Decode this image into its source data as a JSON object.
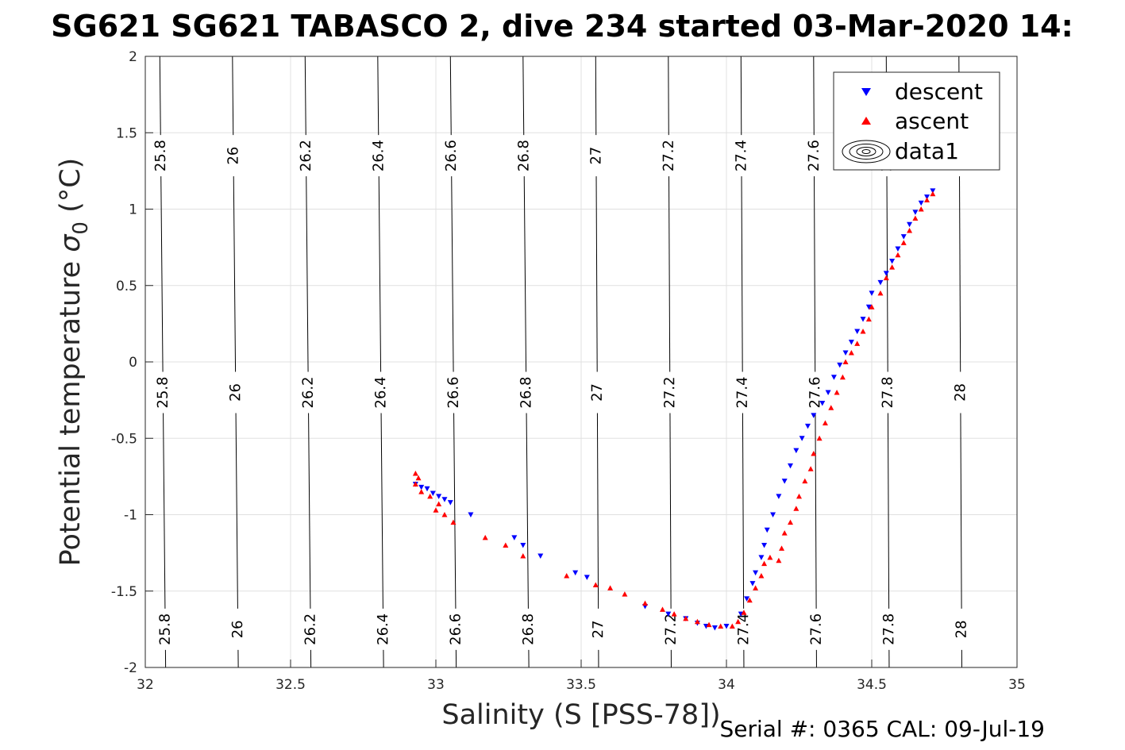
{
  "chart_data": {
    "type": "scatter",
    "title": "SG621 SG621 TABASCO 2, dive 234 started 03-Mar-2020 14:",
    "xlabel": "Salinity (S [PSS-78])",
    "ylabel_main": "Potential temperature ",
    "ylabel_sym": "σ",
    "ylabel_sub": "0",
    "ylabel_unit": " (°C)",
    "footer": "Serial #: 0365  CAL: 09-Jul-19",
    "xlim": [
      32,
      35
    ],
    "ylim": [
      -2,
      2
    ],
    "xticks": [
      32,
      32.5,
      33,
      33.5,
      34,
      34.5,
      35
    ],
    "xtick_labels": [
      "32",
      "32.5",
      "33",
      "33.5",
      "34",
      "34.5",
      "35"
    ],
    "yticks": [
      2,
      1.5,
      1,
      0.5,
      0,
      -0.5,
      -1,
      -1.5,
      -2
    ],
    "ytick_labels": [
      "2",
      "1.5",
      "1",
      "0.5",
      "0",
      "-0.5",
      "-1",
      "-1.5",
      "-2"
    ],
    "grid": true,
    "legend_position": "top-right",
    "isopycnals": {
      "levels": [
        {
          "sigma": 25.8,
          "label": "25.8",
          "x_bottom": 32.07,
          "x_top": 32.05
        },
        {
          "sigma": 26.0,
          "label": "26",
          "x_bottom": 32.32,
          "x_top": 32.3
        },
        {
          "sigma": 26.2,
          "label": "26.2",
          "x_bottom": 32.57,
          "x_top": 32.55
        },
        {
          "sigma": 26.4,
          "label": "26.4",
          "x_bottom": 32.82,
          "x_top": 32.8
        },
        {
          "sigma": 26.6,
          "label": "26.6",
          "x_bottom": 33.07,
          "x_top": 33.05
        },
        {
          "sigma": 26.8,
          "label": "26.8",
          "x_bottom": 33.32,
          "x_top": 33.3
        },
        {
          "sigma": 27.0,
          "label": "27",
          "x_bottom": 33.56,
          "x_top": 33.55
        },
        {
          "sigma": 27.2,
          "label": "27.2",
          "x_bottom": 33.81,
          "x_top": 33.8
        },
        {
          "sigma": 27.4,
          "label": "27.4",
          "x_bottom": 34.06,
          "x_top": 34.05
        },
        {
          "sigma": 27.6,
          "label": "27.6",
          "x_bottom": 34.31,
          "x_top": 34.3
        },
        {
          "sigma": 27.8,
          "label": "27.8",
          "x_bottom": 34.56,
          "x_top": 34.55
        },
        {
          "sigma": 28.0,
          "label": "28",
          "x_bottom": 34.81,
          "x_top": 34.8
        }
      ],
      "label_temps": [
        1.35,
        -0.2,
        -1.75
      ],
      "colors": "#000000"
    },
    "series": [
      {
        "name": "descent",
        "marker": "triangle-down",
        "color": "#0000ff",
        "points": [
          [
            32.93,
            -0.8
          ],
          [
            32.95,
            -0.82
          ],
          [
            32.97,
            -0.83
          ],
          [
            32.99,
            -0.86
          ],
          [
            33.01,
            -0.88
          ],
          [
            33.03,
            -0.9
          ],
          [
            33.05,
            -0.92
          ],
          [
            33.12,
            -1.0
          ],
          [
            33.27,
            -1.15
          ],
          [
            33.3,
            -1.2
          ],
          [
            33.36,
            -1.27
          ],
          [
            33.48,
            -1.38
          ],
          [
            33.52,
            -1.41
          ],
          [
            33.72,
            -1.6
          ],
          [
            33.8,
            -1.65
          ],
          [
            33.86,
            -1.68
          ],
          [
            33.9,
            -1.71
          ],
          [
            33.93,
            -1.73
          ],
          [
            33.96,
            -1.74
          ],
          [
            34.0,
            -1.73
          ],
          [
            34.05,
            -1.65
          ],
          [
            34.07,
            -1.55
          ],
          [
            34.09,
            -1.45
          ],
          [
            34.1,
            -1.38
          ],
          [
            34.12,
            -1.28
          ],
          [
            34.13,
            -1.2
          ],
          [
            34.14,
            -1.1
          ],
          [
            34.16,
            -1.0
          ],
          [
            34.18,
            -0.88
          ],
          [
            34.2,
            -0.78
          ],
          [
            34.22,
            -0.68
          ],
          [
            34.24,
            -0.58
          ],
          [
            34.26,
            -0.5
          ],
          [
            34.28,
            -0.42
          ],
          [
            34.3,
            -0.35
          ],
          [
            34.33,
            -0.27
          ],
          [
            34.35,
            -0.2
          ],
          [
            34.37,
            -0.1
          ],
          [
            34.39,
            -0.02
          ],
          [
            34.41,
            0.06
          ],
          [
            34.43,
            0.13
          ],
          [
            34.45,
            0.2
          ],
          [
            34.47,
            0.28
          ],
          [
            34.49,
            0.36
          ],
          [
            34.5,
            0.45
          ],
          [
            34.53,
            0.52
          ],
          [
            34.55,
            0.58
          ],
          [
            34.57,
            0.66
          ],
          [
            34.59,
            0.74
          ],
          [
            34.61,
            0.82
          ],
          [
            34.63,
            0.9
          ],
          [
            34.65,
            0.98
          ],
          [
            34.67,
            1.04
          ],
          [
            34.69,
            1.08
          ],
          [
            34.71,
            1.12
          ]
        ]
      },
      {
        "name": "ascent",
        "marker": "triangle-up",
        "color": "#ff0000",
        "points": [
          [
            32.93,
            -0.73
          ],
          [
            32.94,
            -0.76
          ],
          [
            32.93,
            -0.8
          ],
          [
            32.95,
            -0.85
          ],
          [
            32.98,
            -0.88
          ],
          [
            33.01,
            -0.93
          ],
          [
            33.0,
            -0.97
          ],
          [
            33.03,
            -1.0
          ],
          [
            33.06,
            -1.05
          ],
          [
            33.17,
            -1.15
          ],
          [
            33.24,
            -1.2
          ],
          [
            33.3,
            -1.27
          ],
          [
            33.45,
            -1.4
          ],
          [
            33.55,
            -1.46
          ],
          [
            33.6,
            -1.48
          ],
          [
            33.65,
            -1.52
          ],
          [
            33.72,
            -1.58
          ],
          [
            33.78,
            -1.62
          ],
          [
            33.82,
            -1.65
          ],
          [
            33.86,
            -1.68
          ],
          [
            33.9,
            -1.7
          ],
          [
            33.94,
            -1.72
          ],
          [
            33.98,
            -1.73
          ],
          [
            34.02,
            -1.73
          ],
          [
            34.04,
            -1.7
          ],
          [
            34.06,
            -1.64
          ],
          [
            34.08,
            -1.56
          ],
          [
            34.1,
            -1.48
          ],
          [
            34.12,
            -1.4
          ],
          [
            34.13,
            -1.32
          ],
          [
            34.15,
            -1.28
          ],
          [
            34.18,
            -1.3
          ],
          [
            34.19,
            -1.22
          ],
          [
            34.2,
            -1.12
          ],
          [
            34.22,
            -1.05
          ],
          [
            34.24,
            -0.96
          ],
          [
            34.25,
            -0.88
          ],
          [
            34.27,
            -0.78
          ],
          [
            34.29,
            -0.7
          ],
          [
            34.3,
            -0.6
          ],
          [
            34.32,
            -0.5
          ],
          [
            34.34,
            -0.4
          ],
          [
            34.36,
            -0.3
          ],
          [
            34.38,
            -0.2
          ],
          [
            34.4,
            -0.1
          ],
          [
            34.41,
            0.0
          ],
          [
            34.43,
            0.06
          ],
          [
            34.45,
            0.12
          ],
          [
            34.47,
            0.2
          ],
          [
            34.49,
            0.28
          ],
          [
            34.5,
            0.36
          ],
          [
            34.53,
            0.45
          ],
          [
            34.55,
            0.55
          ],
          [
            34.57,
            0.62
          ],
          [
            34.59,
            0.7
          ],
          [
            34.61,
            0.78
          ],
          [
            34.63,
            0.86
          ],
          [
            34.65,
            0.94
          ],
          [
            34.67,
            1.0
          ],
          [
            34.69,
            1.06
          ],
          [
            34.71,
            1.1
          ]
        ]
      },
      {
        "name": "data1",
        "marker": "contour-icon",
        "color": "#000000",
        "points": []
      }
    ]
  }
}
